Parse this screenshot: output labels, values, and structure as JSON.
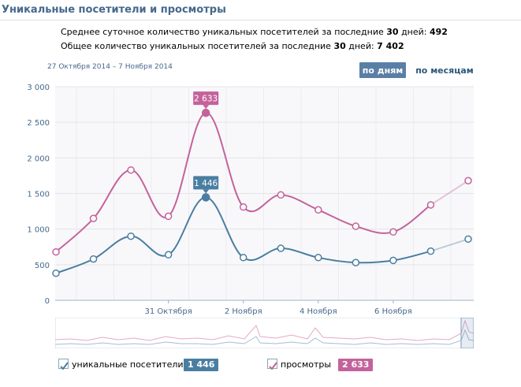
{
  "header": {
    "title": "Уникальные посетители и просмотры"
  },
  "summary": {
    "avg_prefix": "Среднее суточное количество уникальных посетителей за последние",
    "avg_days": "30",
    "avg_days_word": "дней:",
    "avg_value": "492",
    "total_prefix": "Общее количество уникальных посетителей за последние",
    "total_days": "30",
    "total_days_word": "дней:",
    "total_value": "7 402"
  },
  "date_range": "27 Октября 2014 – 7 Ноября 2014",
  "buttons": {
    "by_days": "по дням",
    "by_months": "по месяцам"
  },
  "colors": {
    "visitors": "#4a7ea1",
    "views": "#c4629b",
    "accent": "#5a7fa6"
  },
  "chart_data": {
    "type": "line",
    "x_labels": [
      "31 Октября",
      "2 Ноября",
      "4 Ноября",
      "6 Ноября"
    ],
    "y_ticks": [
      "0",
      "500",
      "1 000",
      "1 500",
      "2 000",
      "2 500",
      "3 000"
    ],
    "ylim": [
      0,
      3000
    ],
    "grid": true,
    "series": [
      {
        "name": "уникальные посетители",
        "color": "#4a7ea1",
        "values": [
          380,
          580,
          900,
          640,
          1446,
          600,
          730,
          600,
          530,
          560,
          690,
          860
        ]
      },
      {
        "name": "просмотры",
        "color": "#c4629b",
        "values": [
          680,
          1150,
          1830,
          1180,
          2633,
          1310,
          1480,
          1270,
          1040,
          960,
          1340,
          1680
        ]
      }
    ],
    "tooltips": [
      {
        "series": 1,
        "index": 4,
        "label": "2 633"
      },
      {
        "series": 0,
        "index": 4,
        "label": "1 446"
      }
    ]
  },
  "legend": [
    {
      "label": "уникальные посетители",
      "value": "1 446",
      "color": "#4a7ea1"
    },
    {
      "label": "просмотры",
      "value": "2 633",
      "color": "#c4629b"
    }
  ]
}
